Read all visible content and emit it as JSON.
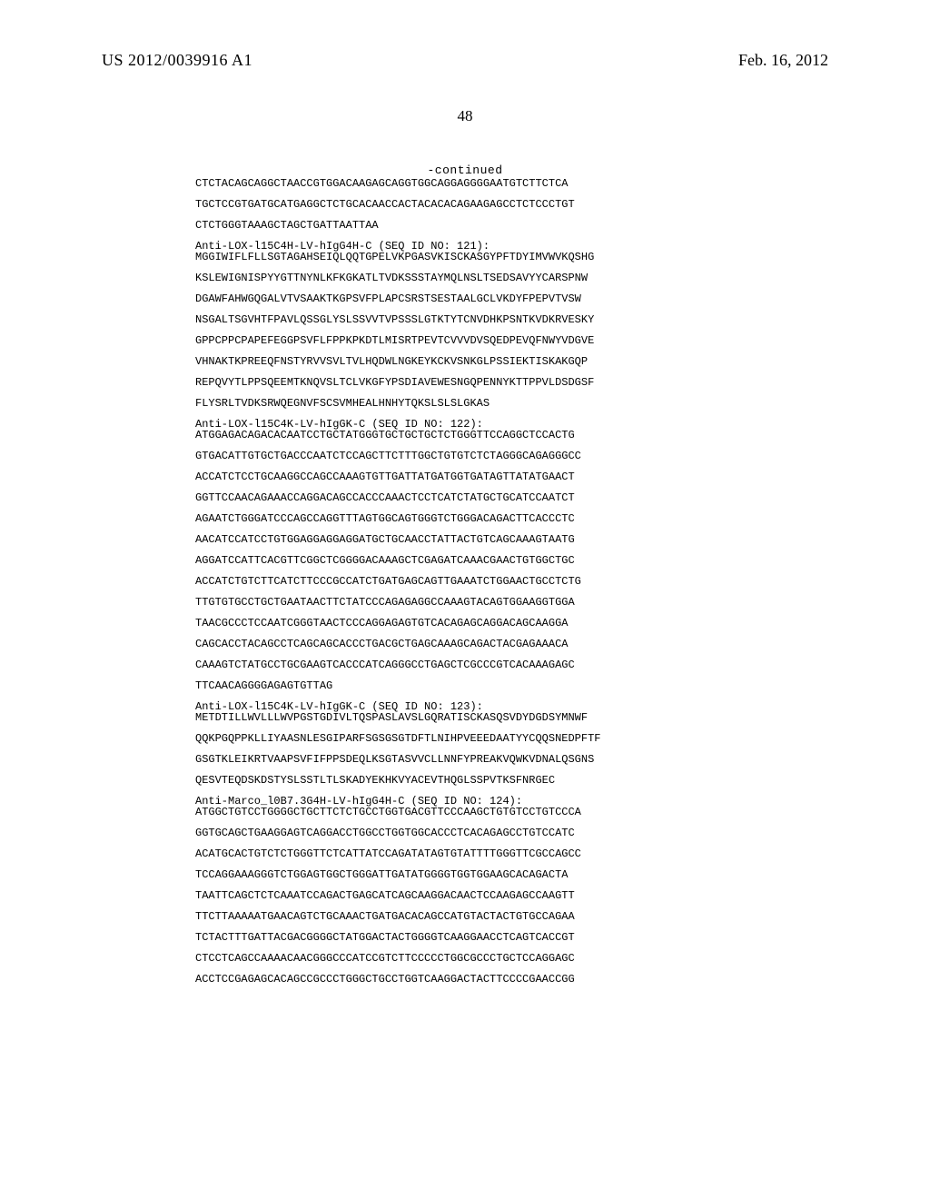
{
  "header": {
    "publication_number": "US 2012/0039916 A1",
    "publication_date": "Feb. 16, 2012",
    "page_number": "48",
    "continued_label": "-continued"
  },
  "sequence_lines": [
    {
      "t": "seq",
      "v": "CTCTACAGCAGGCTAACCGTGGACAAGAGCAGGTGGCAGGAGGGGAATGTCTTCTCA"
    },
    {
      "t": "gap"
    },
    {
      "t": "seq",
      "v": "TGCTCCGTGATGCATGAGGCTCTGCACAACCACTACACACAGAAGAGCCTCTCCCTGT"
    },
    {
      "t": "gap"
    },
    {
      "t": "seq",
      "v": "CTCTGGGTAAAGCTAGCTGATTAATTAA"
    },
    {
      "t": "gap"
    },
    {
      "t": "seq",
      "v": "Anti-LOX-l15C4H-LV-hIgG4H-C (SEQ ID NO: 121):"
    },
    {
      "t": "seq",
      "v": "MGGIWIFLFLLSGTAGAHSEIQLQQTGPELVKPGASVKISCKASGYPFTDYIMVWVKQSHG"
    },
    {
      "t": "gap"
    },
    {
      "t": "seq",
      "v": "KSLEWIGNISPYYGTTNYNLKFKGKATLTVDKSSSTAYMQLNSLTSEDSAVYYCARSPNW"
    },
    {
      "t": "gap"
    },
    {
      "t": "seq",
      "v": "DGAWFAHWGQGALVTVSAAKTKGPSVFPLAPCSRSTSESTAALGCLVKDYFPEPVTVSW"
    },
    {
      "t": "gap"
    },
    {
      "t": "seq",
      "v": "NSGALTSGVHTFPAVLQSSGLYSLSSVVTVPSSSLGTKTYTCNVDHKPSNTKVDKRVESKY"
    },
    {
      "t": "gap"
    },
    {
      "t": "seq",
      "v": "GPPCPPCPAPEFEGGPSVFLFPPKPKDTLMISRTPEVTCVVVDVSQEDPEVQFNWYVDGVE"
    },
    {
      "t": "gap"
    },
    {
      "t": "seq",
      "v": "VHNAKTKPREEQFNSTYRVVSVLTVLHQDWLNGKEYKCKVSNKGLPSSIEKTISKAKGQP"
    },
    {
      "t": "gap"
    },
    {
      "t": "seq",
      "v": "REPQVYTLPPSQEEMTKNQVSLTCLVKGFYPSDIAVEWESNGQPENNYKTTPPVLDSDGSF"
    },
    {
      "t": "gap"
    },
    {
      "t": "seq",
      "v": "FLYSRLTVDKSRWQEGNVFSCSVMHEALHNHYTQKSLSLSLGKAS"
    },
    {
      "t": "gap"
    },
    {
      "t": "seq",
      "v": "Anti-LOX-l15C4K-LV-hIgGK-C (SEQ ID NO: 122):"
    },
    {
      "t": "seq",
      "v": "ATGGAGACAGACACAATCCTGCTATGGGTGCTGCTGCTCTGGGTTCCAGGCTCCACTG"
    },
    {
      "t": "gap"
    },
    {
      "t": "seq",
      "v": "GTGACATTGTGCTGACCCAATCTCCAGCTTCTTTGGCTGTGTCTCTAGGGCAGAGGGCC"
    },
    {
      "t": "gap"
    },
    {
      "t": "seq",
      "v": "ACCATCTCCTGCAAGGCCAGCCAAAGTGTTGATTATGATGGTGATAGTTATATGAACT"
    },
    {
      "t": "gap"
    },
    {
      "t": "seq",
      "v": "GGTTCCAACAGAAACCAGGACAGCCACCCAAACTCCTCATCTATGCTGCATCCAATCT"
    },
    {
      "t": "gap"
    },
    {
      "t": "seq",
      "v": "AGAATCTGGGATCCCAGCCAGGTTTAGTGGCAGTGGGTCTGGGACAGACTTCACCCTC"
    },
    {
      "t": "gap"
    },
    {
      "t": "seq",
      "v": "AACATCCATCCTGTGGAGGAGGAGGATGCTGCAACCTATTACTGTCAGCAAAGTAATG"
    },
    {
      "t": "gap"
    },
    {
      "t": "seq",
      "v": "AGGATCCATTCACGTTCGGCTCGGGGACAAAGCTCGAGATCAAACGAACTGTGGCTGC"
    },
    {
      "t": "gap"
    },
    {
      "t": "seq",
      "v": "ACCATCTGTCTTCATCTTCCCGCCATCTGATGAGCAGTTGAAATCTGGAACTGCCTCTG"
    },
    {
      "t": "gap"
    },
    {
      "t": "seq",
      "v": "TTGTGTGCCTGCTGAATAACTTCTATCCCAGAGAGGCCAAAGTACAGTGGAAGGTGGA"
    },
    {
      "t": "gap"
    },
    {
      "t": "seq",
      "v": "TAACGCCCTCCAATCGGGTAACTCCCAGGAGAGTGTCACAGAGCAGGACAGCAAGGA"
    },
    {
      "t": "gap"
    },
    {
      "t": "seq",
      "v": "CAGCACCTACAGCCTCAGCAGCACCCTGACGCTGAGCAAAGCAGACTACGAGAAACA"
    },
    {
      "t": "gap"
    },
    {
      "t": "seq",
      "v": "CAAAGTCTATGCCTGCGAAGTCACCCATCAGGGCCTGAGCTCGCCCGTCACAAAGAGC"
    },
    {
      "t": "gap"
    },
    {
      "t": "seq",
      "v": "TTCAACAGGGGAGAGTGTTAG"
    },
    {
      "t": "gap"
    },
    {
      "t": "seq",
      "v": "Anti-LOX-l15C4K-LV-hIgGK-C (SEQ ID NO: 123):"
    },
    {
      "t": "seq",
      "v": "METDTILLWVLLLWVPGSTGDIVLTQSPASLAVSLGQRATISCKASQSVDYDGDSYMNWF"
    },
    {
      "t": "gap"
    },
    {
      "t": "seq",
      "v": "QQKPGQPPKLLIYAASNLESGIPARFSGSGSGTDFTLNIHPVEEEDAATYYCQQSNEDPFTF"
    },
    {
      "t": "gap"
    },
    {
      "t": "seq",
      "v": "GSGTKLEIKRTVAAPSVFIFPPSDEQLKSGTASVVCLLNNFYPREAKVQWKVDNALQSGNS"
    },
    {
      "t": "gap"
    },
    {
      "t": "seq",
      "v": "QESVTEQDSKDSTYSLSSTLTLSKADYEKHKVYACEVTHQGLSSPVTKSFNRGEC"
    },
    {
      "t": "gap"
    },
    {
      "t": "seq",
      "v": "Anti-Marco_l0B7.3G4H-LV-hIgG4H-C (SEQ ID NO: 124):"
    },
    {
      "t": "seq",
      "v": "ATGGCTGTCCTGGGGCTGCTTCTCTGCCTGGTGACGTTCCCAAGCTGTGTCCTGTCCCA"
    },
    {
      "t": "gap"
    },
    {
      "t": "seq",
      "v": "GGTGCAGCTGAAGGAGTCAGGACCTGGCCTGGTGGCACCCTCACAGAGCCTGTCCATC"
    },
    {
      "t": "gap"
    },
    {
      "t": "seq",
      "v": "ACATGCACTGTCTCTGGGTTCTCATTATCCAGATATAGTGTATTTTGGGTTCGCCAGCC"
    },
    {
      "t": "gap"
    },
    {
      "t": "seq",
      "v": "TCCAGGAAAGGGTCTGGAGTGGCTGGGATTGATATGGGGTGGTGGAAGCACAGACTA"
    },
    {
      "t": "gap"
    },
    {
      "t": "seq",
      "v": "TAATTCAGCTCTCAAATCCAGACTGAGCATCAGCAAGGACAACTCCAAGAGCCAAGTT"
    },
    {
      "t": "gap"
    },
    {
      "t": "seq",
      "v": "TTCTTAAAAATGAACAGTCTGCAAACTGATGACACAGCCATGTACTACTGTGCCAGAA"
    },
    {
      "t": "gap"
    },
    {
      "t": "seq",
      "v": "TCTACTTTGATTACGACGGGGCTATGGACTACTGGGGTCAAGGAACCTCAGTCACCGT"
    },
    {
      "t": "gap"
    },
    {
      "t": "seq",
      "v": "CTCCTCAGCCAAAACAACGGGCCCATCCGTCTTCCCCCTGGCGCCCTGCTCCAGGAGC"
    },
    {
      "t": "gap"
    },
    {
      "t": "seq",
      "v": "ACCTCCGAGAGCACAGCCGCCCTGGGCTGCCTGGTCAAGGACTACTTCCCCGAACCGG"
    }
  ]
}
